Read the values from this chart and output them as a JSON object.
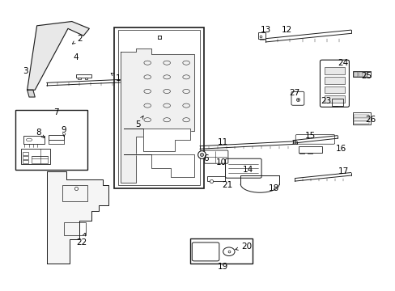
{
  "bg_color": "#ffffff",
  "lc": "#1a1a1a",
  "fig_w": 4.89,
  "fig_h": 3.6,
  "dpi": 100,
  "labels": {
    "1": [
      0.295,
      0.735,
      0.27,
      0.76,
      true
    ],
    "2": [
      0.195,
      0.875,
      0.175,
      0.855,
      true
    ],
    "3": [
      0.055,
      0.76,
      0.06,
      0.78,
      true
    ],
    "4": [
      0.185,
      0.81,
      0.185,
      0.795,
      true
    ],
    "5": [
      0.345,
      0.575,
      0.36,
      0.605,
      true
    ],
    "6": [
      0.52,
      0.455,
      0.505,
      0.47,
      true
    ],
    "7": [
      0.135,
      0.615,
      0.14,
      0.6,
      true
    ],
    "8": [
      0.09,
      0.545,
      0.105,
      0.525,
      true
    ],
    "9": [
      0.155,
      0.555,
      0.155,
      0.53,
      true
    ],
    "10": [
      0.56,
      0.44,
      0.55,
      0.455,
      true
    ],
    "11": [
      0.565,
      0.51,
      0.565,
      0.49,
      true
    ],
    "12": [
      0.73,
      0.905,
      0.72,
      0.885,
      true
    ],
    "13": [
      0.675,
      0.905,
      0.675,
      0.882,
      true
    ],
    "14": [
      0.63,
      0.415,
      0.625,
      0.435,
      true
    ],
    "15": [
      0.79,
      0.535,
      0.785,
      0.52,
      true
    ],
    "16": [
      0.87,
      0.49,
      0.85,
      0.478,
      true
    ],
    "17": [
      0.875,
      0.41,
      0.865,
      0.398,
      true
    ],
    "18": [
      0.695,
      0.35,
      0.685,
      0.365,
      true
    ],
    "19": [
      0.565,
      0.075,
      0.565,
      0.09,
      true
    ],
    "20": [
      0.625,
      0.145,
      0.595,
      0.135,
      true
    ],
    "21": [
      0.575,
      0.36,
      0.565,
      0.375,
      true
    ],
    "22": [
      0.2,
      0.16,
      0.21,
      0.195,
      true
    ],
    "23": [
      0.83,
      0.655,
      0.845,
      0.655,
      true
    ],
    "24": [
      0.875,
      0.79,
      0.865,
      0.77,
      true
    ],
    "25": [
      0.935,
      0.745,
      0.92,
      0.745,
      true
    ],
    "26": [
      0.945,
      0.59,
      0.93,
      0.59,
      true
    ],
    "27": [
      0.75,
      0.685,
      0.755,
      0.67,
      true
    ]
  }
}
